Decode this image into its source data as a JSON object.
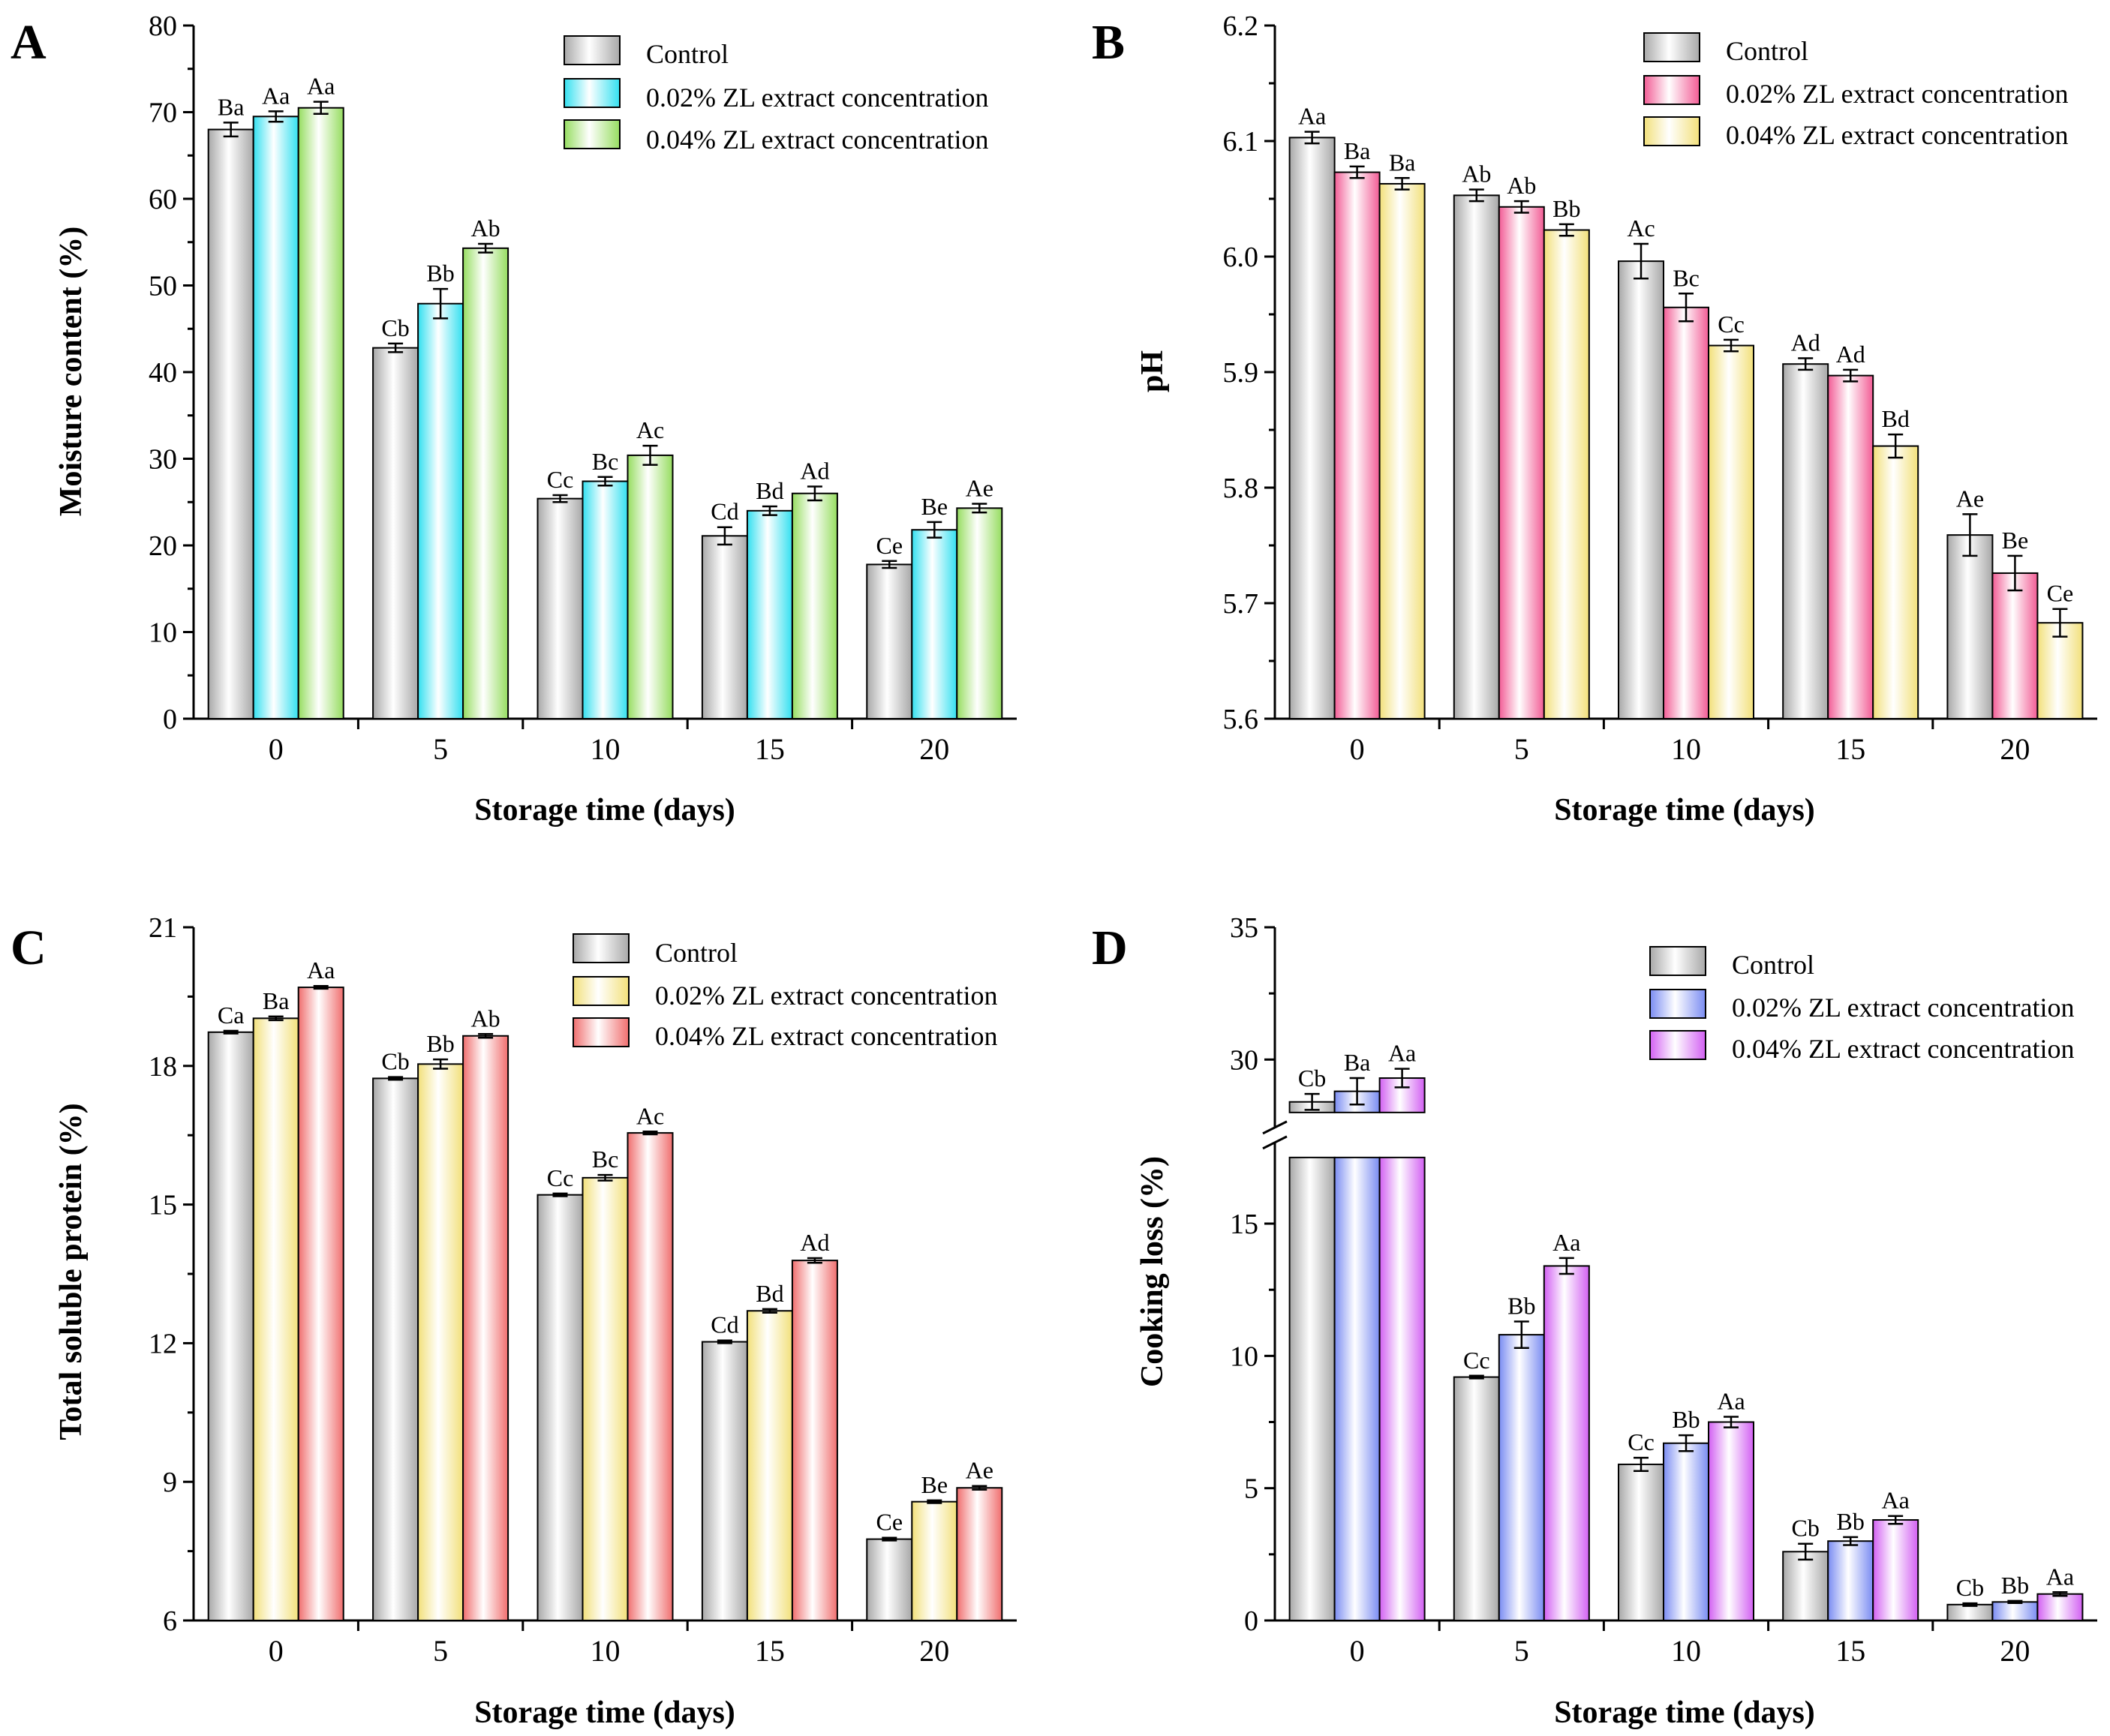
{
  "chart_data": [
    {
      "panel": "A",
      "type": "bar",
      "categories": [
        "0",
        "5",
        "10",
        "15",
        "20"
      ],
      "xlabel": "Storage time (days)",
      "ylabel": "Moisture content (%)",
      "ylim": [
        0,
        80
      ],
      "yticks": [
        "0",
        "10",
        "20",
        "30",
        "40",
        "50",
        "60",
        "70",
        "80"
      ],
      "ytick_values": [
        0,
        10,
        20,
        30,
        40,
        50,
        60,
        70,
        80
      ],
      "legend_position": "top-right",
      "series": [
        {
          "name": "Control",
          "color": "#a8a8a8",
          "values": [
            68.0,
            42.8,
            25.4,
            21.1,
            17.8
          ],
          "errors": [
            0.8,
            0.5,
            0.4,
            1.0,
            0.4
          ],
          "labels": [
            "Ba",
            "Cb",
            "Cc",
            "Cd",
            "Ce"
          ]
        },
        {
          "name": "0.02% ZL extract concentration",
          "color": "#33e0f0",
          "values": [
            69.5,
            47.9,
            27.4,
            24.0,
            21.8
          ],
          "errors": [
            0.6,
            1.7,
            0.5,
            0.5,
            0.9
          ],
          "labels": [
            "Aa",
            "Bb",
            "Bc",
            "Bd",
            "Be"
          ]
        },
        {
          "name": "0.04% ZL extract concentration",
          "color": "#96dd60",
          "values": [
            70.5,
            54.3,
            30.4,
            26.0,
            24.3
          ],
          "errors": [
            0.7,
            0.5,
            1.1,
            0.8,
            0.5
          ],
          "labels": [
            "Aa",
            "Ab",
            "Ac",
            "Ad",
            "Ae"
          ]
        }
      ]
    },
    {
      "panel": "B",
      "type": "bar",
      "categories": [
        "0",
        "5",
        "10",
        "15",
        "20"
      ],
      "xlabel": "Storage time (days)",
      "ylabel": "pH",
      "ylim": [
        5.6,
        6.2
      ],
      "yticks": [
        "5.6",
        "5.7",
        "5.8",
        "5.9",
        "6.0",
        "6.1",
        "6.2"
      ],
      "ytick_values": [
        5.6,
        5.7,
        5.8,
        5.9,
        6.0,
        6.1,
        6.2
      ],
      "legend_position": "top-right",
      "series": [
        {
          "name": "Control",
          "color": "#a8a8a8",
          "values": [
            6.103,
            6.053,
            5.996,
            5.907,
            5.759
          ],
          "errors": [
            0.005,
            0.005,
            0.015,
            0.005,
            0.018
          ],
          "labels": [
            "Aa",
            "Ab",
            "Ac",
            "Ad",
            "Ae"
          ]
        },
        {
          "name": "0.02% ZL extract concentration",
          "color": "#f25c95",
          "values": [
            6.073,
            6.043,
            5.956,
            5.897,
            5.726
          ],
          "errors": [
            0.005,
            0.005,
            0.012,
            0.005,
            0.015
          ],
          "labels": [
            "Ba",
            "Ab",
            "Bc",
            "Ad",
            "Be"
          ]
        },
        {
          "name": "0.04% ZL extract concentration",
          "color": "#f2e07a",
          "values": [
            6.063,
            6.023,
            5.923,
            5.836,
            5.683
          ],
          "errors": [
            0.005,
            0.005,
            0.005,
            0.01,
            0.012
          ],
          "labels": [
            "Ba",
            "Bb",
            "Cc",
            "Bd",
            "Ce"
          ]
        }
      ]
    },
    {
      "panel": "C",
      "type": "bar",
      "categories": [
        "0",
        "5",
        "10",
        "15",
        "20"
      ],
      "xlabel": "Storage time (days)",
      "ylabel": "Total soluble protein (%)",
      "ylim": [
        6,
        21
      ],
      "yticks": [
        "6",
        "9",
        "12",
        "15",
        "18",
        "21"
      ],
      "ytick_values": [
        6,
        9,
        12,
        15,
        18,
        21
      ],
      "legend_position": "top-right",
      "series": [
        {
          "name": "Control",
          "color": "#a8a8a8",
          "values": [
            18.73,
            17.73,
            15.21,
            12.03,
            7.76
          ],
          "errors": [
            0.03,
            0.03,
            0.03,
            0.03,
            0.03
          ],
          "labels": [
            "Ca",
            "Cb",
            "Cc",
            "Cd",
            "Ce"
          ]
        },
        {
          "name": "0.02% ZL extract concentration",
          "color": "#f2e07a",
          "values": [
            19.03,
            18.04,
            15.58,
            12.7,
            8.57
          ],
          "errors": [
            0.04,
            0.1,
            0.06,
            0.04,
            0.03
          ],
          "labels": [
            "Ba",
            "Bb",
            "Bc",
            "Bd",
            "Be"
          ]
        },
        {
          "name": "0.04% ZL extract concentration",
          "color": "#f06e6e",
          "values": [
            19.7,
            18.65,
            16.55,
            13.79,
            8.87
          ],
          "errors": [
            0.03,
            0.04,
            0.03,
            0.05,
            0.04
          ],
          "labels": [
            "Aa",
            "Ab",
            "Ac",
            "Ad",
            "Ae"
          ]
        }
      ]
    },
    {
      "panel": "D",
      "type": "bar",
      "categories": [
        "0",
        "5",
        "10",
        "15",
        "20"
      ],
      "xlabel": "Storage time (days)",
      "ylabel": "Cooking loss (%)",
      "ylim": [
        0,
        35
      ],
      "axis_break": [
        17.5,
        28
      ],
      "yticks": [
        "0",
        "5",
        "10",
        "15",
        "30",
        "35"
      ],
      "ytick_values": [
        0,
        5,
        10,
        15,
        30,
        35
      ],
      "legend_position": "top-right",
      "series": [
        {
          "name": "Control",
          "color": "#a8a8a8",
          "values": [
            28.4,
            9.2,
            5.9,
            2.6,
            0.6
          ],
          "errors": [
            0.3,
            0.05,
            0.25,
            0.3,
            0.05
          ],
          "labels": [
            "Cb",
            "Cc",
            "Cc",
            "Cb",
            "Cb"
          ]
        },
        {
          "name": "0.02% ZL extract concentration",
          "color": "#7a8cf2",
          "values": [
            28.8,
            10.8,
            6.7,
            3.0,
            0.7
          ],
          "errors": [
            0.5,
            0.5,
            0.3,
            0.15,
            0.04
          ],
          "labels": [
            "Ba",
            "Bb",
            "Bb",
            "Bb",
            "Bb"
          ]
        },
        {
          "name": "0.04% ZL extract concentration",
          "color": "#d260f2",
          "values": [
            29.3,
            13.4,
            7.5,
            3.8,
            1.0
          ],
          "errors": [
            0.35,
            0.3,
            0.2,
            0.15,
            0.07
          ],
          "labels": [
            "Aa",
            "Aa",
            "Aa",
            "Aa",
            "Aa"
          ]
        }
      ]
    }
  ]
}
